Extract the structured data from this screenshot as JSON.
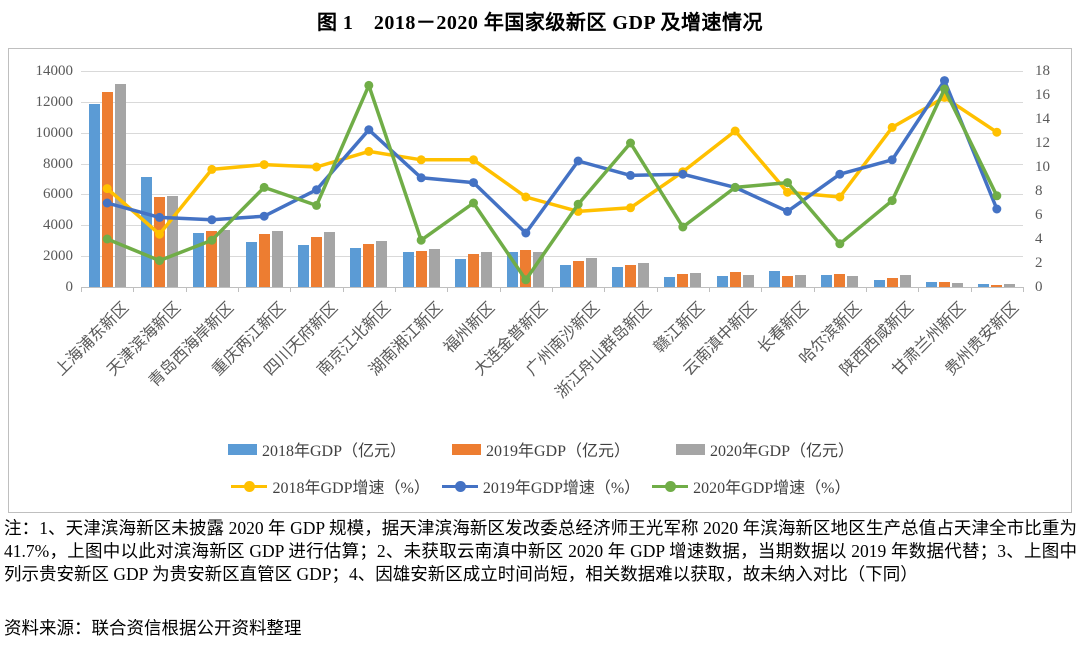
{
  "title": "图 1　2018－2020 年国家级新区 GDP 及增速情况",
  "chart_data": {
    "type": "bar",
    "subtype": "bar-line-combo",
    "categories": [
      "上海浦东新区",
      "天津滨海新区",
      "青岛西海岸新区",
      "重庆两江新区",
      "四川天府新区",
      "南京江北新区",
      "湖南湘江新区",
      "福州新区",
      "大连金普新区",
      "广州南沙新区",
      "浙江舟山群岛新区",
      "赣江新区",
      "云南滇中新区",
      "长春新区",
      "哈尔滨新区",
      "陕西西咸新区",
      "甘肃兰州新区",
      "贵州贵安新区"
    ],
    "series": [
      {
        "name": "2018年GDP（亿元）",
        "type": "bar",
        "axis": "left",
        "color": "#5B9BD5",
        "values": [
          11850,
          7100,
          3500,
          2900,
          2700,
          2500,
          2300,
          1800,
          2250,
          1450,
          1300,
          680,
          720,
          1010,
          790,
          440,
          340,
          200
        ]
      },
      {
        "name": "2019年GDP（亿元）",
        "type": "bar",
        "axis": "left",
        "color": "#ED7D31",
        "values": [
          12650,
          5850,
          3600,
          3450,
          3250,
          2780,
          2360,
          2150,
          2400,
          1680,
          1440,
          820,
          940,
          720,
          830,
          600,
          340,
          120
        ]
      },
      {
        "name": "2020年GDP（亿元）",
        "type": "bar",
        "axis": "left",
        "color": "#A5A5A5",
        "values": [
          13150,
          5870,
          3720,
          3650,
          3550,
          3000,
          2470,
          2300,
          2280,
          1850,
          1550,
          910,
          800,
          790,
          720,
          760,
          280,
          185
        ]
      },
      {
        "name": "2018年GDP增速（%）",
        "type": "line",
        "axis": "right",
        "color": "#FFC000",
        "values": [
          8.2,
          4.4,
          9.8,
          10.2,
          10.0,
          11.3,
          10.6,
          10.6,
          7.5,
          6.3,
          6.6,
          9.6,
          13.0,
          7.9,
          7.5,
          13.3,
          15.8,
          12.9
        ]
      },
      {
        "name": "2019年GDP增速（%）",
        "type": "line",
        "axis": "right",
        "color": "#4472C4",
        "values": [
          7.0,
          5.8,
          5.6,
          5.9,
          8.1,
          13.1,
          9.1,
          8.7,
          4.5,
          10.5,
          9.3,
          9.4,
          8.3,
          6.3,
          9.4,
          10.6,
          17.2,
          6.5
        ]
      },
      {
        "name": "2020年GDP增速（%）",
        "type": "line",
        "axis": "right",
        "color": "#70AD47",
        "values": [
          4.0,
          2.2,
          3.9,
          8.3,
          6.8,
          16.8,
          3.9,
          7.0,
          0.6,
          6.9,
          12.0,
          5.0,
          8.3,
          8.7,
          3.6,
          7.2,
          16.5,
          7.6
        ]
      }
    ],
    "left_axis": {
      "min": 0,
      "max": 14000,
      "step": 2000,
      "ticks": [
        "0",
        "2000",
        "4000",
        "6000",
        "8000",
        "10000",
        "12000",
        "14000"
      ]
    },
    "right_axis": {
      "min": 0,
      "max": 18,
      "step": 2,
      "ticks": [
        "0",
        "2",
        "4",
        "6",
        "8",
        "10",
        "12",
        "14",
        "16",
        "18"
      ]
    },
    "grid": true,
    "legend_position": "bottom"
  },
  "notes": {
    "text": "注：1、天津滨海新区未披露 2020 年 GDP 规模，据天津滨海新区发改委总经济师王光军称 2020 年滨海新区地区生产总值占天津全市比重为 41.7%，上图中以此对滨海新区 GDP 进行估算；2、未获取云南滇中新区 2020 年 GDP 增速数据，当期数据以 2019 年数据代替；3、上图中列示贵安新区 GDP 为贵安新区直管区 GDP；4、因雄安新区成立时间尚短，相关数据难以获取，故未纳入对比（下同）",
    "source": "资料来源：联合资信根据公开资料整理"
  }
}
